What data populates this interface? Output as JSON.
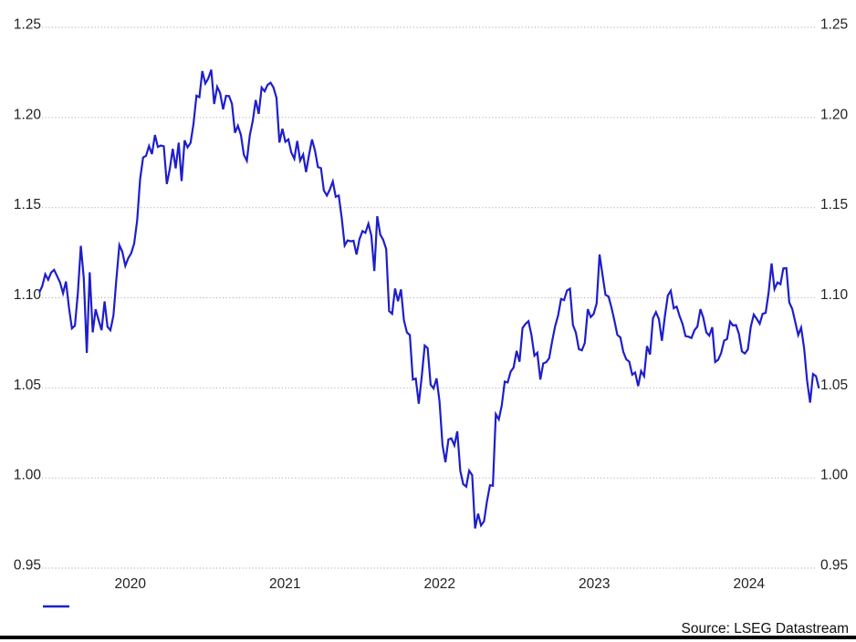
{
  "source_note": "Source: LSEG Datastream",
  "colors": {
    "line": "#1e1ecb",
    "grid": "#b8b8b8",
    "tick_text": "#222222",
    "source_text": "#111111",
    "bottom_border": "#000000",
    "background": "#ffffff"
  },
  "chart_data": {
    "type": "line",
    "title": "",
    "xlabel": "",
    "ylabel": "",
    "grid": "horizontal-dotted",
    "ylim": [
      0.95,
      1.25
    ],
    "y_ticks": [
      {
        "value": 1.25,
        "label": "1.25"
      },
      {
        "value": 1.2,
        "label": "1.20"
      },
      {
        "value": 1.15,
        "label": "1.15"
      },
      {
        "value": 1.1,
        "label": "1.10"
      },
      {
        "value": 1.05,
        "label": "1.05"
      },
      {
        "value": 1.0,
        "label": "1.00"
      },
      {
        "value": 0.95,
        "label": "0.95"
      }
    ],
    "y_axis_labels_both_sides": true,
    "x_ticks": [
      {
        "year": 2020,
        "label": "2020"
      },
      {
        "year": 2021,
        "label": "2021"
      },
      {
        "year": 2022,
        "label": "2022"
      },
      {
        "year": 2023,
        "label": "2023"
      },
      {
        "year": 2024,
        "label": "2024"
      }
    ],
    "xlim_years": [
      2019.9,
      2024.96
    ],
    "legend": {
      "label": "",
      "position": "bottom-left",
      "swatch": "line"
    },
    "series": [
      {
        "name": "",
        "start_year": 2019.912,
        "step_years": 0.019165,
        "values": [
          1.103,
          1.1065,
          1.113,
          1.11,
          1.114,
          1.1155,
          1.112,
          1.1085,
          1.1025,
          1.109,
          1.0945,
          1.083,
          1.0845,
          1.1025,
          1.1288,
          1.1109,
          1.0694,
          1.1141,
          1.0808,
          1.0936,
          1.0875,
          1.082,
          1.098,
          1.0839,
          1.082,
          1.0901,
          1.1101,
          1.1292,
          1.1256,
          1.1177,
          1.1219,
          1.1248,
          1.13,
          1.1428,
          1.1656,
          1.1778,
          1.1787,
          1.1842,
          1.1797,
          1.1903,
          1.1837,
          1.1845,
          1.184,
          1.1631,
          1.1713,
          1.1826,
          1.1718,
          1.186,
          1.1647,
          1.1873,
          1.1834,
          1.1859,
          1.1963,
          1.2121,
          1.2113,
          1.2257,
          1.2189,
          1.2216,
          1.2265,
          1.2075,
          1.217,
          1.2136,
          1.2045,
          1.212,
          1.2119,
          1.2075,
          1.1915,
          1.1954,
          1.1903,
          1.1794,
          1.176,
          1.19,
          1.1982,
          1.2097,
          1.202,
          1.2166,
          1.2145,
          1.2181,
          1.2193,
          1.2166,
          1.2108,
          1.1861,
          1.1938,
          1.1865,
          1.1879,
          1.1806,
          1.1771,
          1.187,
          1.1761,
          1.1795,
          1.1697,
          1.1795,
          1.1878,
          1.1815,
          1.1725,
          1.1719,
          1.1595,
          1.1567,
          1.16,
          1.1645,
          1.156,
          1.1567,
          1.1445,
          1.129,
          1.1318,
          1.1313,
          1.1316,
          1.124,
          1.1325,
          1.137,
          1.136,
          1.1411,
          1.1345,
          1.1148,
          1.1453,
          1.135,
          1.1321,
          1.127,
          1.0926,
          1.0911,
          1.1051,
          1.0981,
          1.1046,
          1.0876,
          1.0808,
          1.0793,
          1.0546,
          1.0552,
          1.0412,
          1.0561,
          1.0735,
          1.072,
          1.0518,
          1.0497,
          1.0553,
          1.0427,
          1.0183,
          1.0088,
          1.0214,
          1.022,
          1.0181,
          1.0259,
          1.004,
          0.9966,
          0.9952,
          1.0041,
          1.0016,
          0.972,
          0.9802,
          0.9737,
          0.976,
          0.987,
          0.996,
          0.9957,
          1.0354,
          1.0325,
          1.0402,
          1.0535,
          1.053,
          1.059,
          1.0613,
          1.0705,
          1.0645,
          1.0832,
          1.0855,
          1.087,
          1.0795,
          1.0679,
          1.0695,
          1.0546,
          1.0636,
          1.0643,
          1.0665,
          1.076,
          1.0842,
          1.0902,
          1.0993,
          1.0987,
          1.104,
          1.105,
          1.0849,
          1.0805,
          1.0715,
          1.0708,
          1.0749,
          1.0937,
          1.0893,
          1.091,
          1.0968,
          1.124,
          1.1125,
          1.1016,
          1.1007,
          1.0947,
          1.0873,
          1.0794,
          1.078,
          1.07,
          1.0658,
          1.0646,
          1.0573,
          1.0585,
          1.051,
          1.0594,
          1.0565,
          1.0732,
          1.0685,
          1.0885,
          1.092,
          1.0882,
          1.0761,
          1.0895,
          1.1012,
          1.1039,
          1.0942,
          1.0951,
          1.0897,
          1.0854,
          1.0787,
          1.0784,
          1.0777,
          1.082,
          1.084,
          1.0937,
          1.0889,
          1.0808,
          1.079,
          1.0836,
          1.0644,
          1.0656,
          1.0693,
          1.0762,
          1.0771,
          1.0868,
          1.0846,
          1.0848,
          1.08,
          1.0702,
          1.0691,
          1.0713,
          1.0839,
          1.0907,
          1.0883,
          1.0856,
          1.0911,
          1.0916,
          1.1027,
          1.119,
          1.1048,
          1.1085,
          1.1075,
          1.1163,
          1.1164,
          1.0974,
          1.0937,
          1.0866,
          1.0793,
          1.0834,
          1.0718,
          1.054,
          1.0418,
          1.0577,
          1.0565,
          1.0497
        ]
      }
    ]
  }
}
